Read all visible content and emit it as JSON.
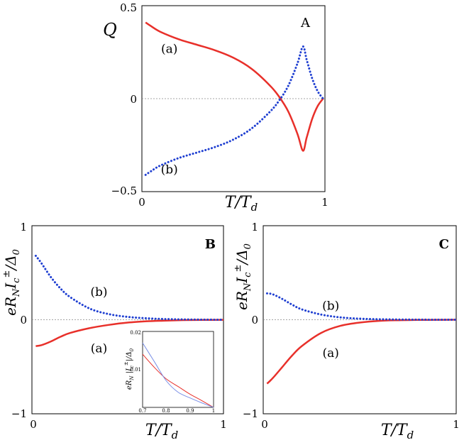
{
  "colors": {
    "curve_a": "#e8302a",
    "curve_b": "#1f3fd1",
    "axis": "#000000",
    "zero_line": "#888888"
  },
  "chart_data": [
    {
      "panel": "A",
      "type": "line",
      "ylabel": "Q",
      "xlabel": "T/T",
      "xlabel_sub": "d",
      "xlim": [
        0,
        1
      ],
      "ylim": [
        -0.5,
        0.5
      ],
      "x_ticks": [
        "0",
        "1"
      ],
      "y_ticks": [
        "−0.5",
        "0",
        "0.5"
      ],
      "series": [
        {
          "name": "(a)",
          "style": "solid",
          "x": [
            0.02,
            0.05,
            0.1,
            0.2,
            0.3,
            0.4,
            0.5,
            0.6,
            0.7,
            0.75,
            0.8,
            0.85,
            0.88,
            0.9,
            0.93,
            0.96,
            0.99
          ],
          "y": [
            0.41,
            0.39,
            0.36,
            0.32,
            0.29,
            0.26,
            0.22,
            0.16,
            0.07,
            0.01,
            -0.07,
            -0.19,
            -0.28,
            -0.21,
            -0.11,
            -0.04,
            0.0
          ]
        },
        {
          "name": "(b)",
          "style": "dotted",
          "x": [
            0.02,
            0.05,
            0.1,
            0.2,
            0.3,
            0.4,
            0.5,
            0.6,
            0.7,
            0.75,
            0.8,
            0.85,
            0.88,
            0.9,
            0.93,
            0.96,
            0.99
          ],
          "y": [
            -0.41,
            -0.39,
            -0.36,
            -0.32,
            -0.29,
            -0.26,
            -0.22,
            -0.16,
            -0.07,
            -0.01,
            0.07,
            0.19,
            0.28,
            0.21,
            0.11,
            0.04,
            0.0
          ]
        }
      ],
      "labels": [
        {
          "text": "(a)",
          "x": 0.15,
          "y": 0.27
        },
        {
          "text": "(b)",
          "x": 0.15,
          "y": -0.38
        }
      ]
    },
    {
      "panel": "B",
      "type": "line",
      "ylabel": "eR",
      "xlabel": "T/T",
      "xlabel_sub": "d",
      "xlim": [
        0,
        1
      ],
      "ylim": [
        -1,
        1
      ],
      "x_ticks": [
        "0",
        "1"
      ],
      "y_ticks": [
        "−1",
        "0",
        "1"
      ],
      "series": [
        {
          "name": "(a)",
          "style": "solid",
          "x": [
            0.02,
            0.05,
            0.1,
            0.15,
            0.2,
            0.3,
            0.4,
            0.5,
            0.6,
            0.7,
            0.8,
            0.9,
            1.0
          ],
          "y": [
            -0.28,
            -0.27,
            -0.23,
            -0.18,
            -0.14,
            -0.09,
            -0.055,
            -0.03,
            -0.016,
            -0.009,
            -0.004,
            -0.002,
            -0.001
          ]
        },
        {
          "name": "(b)",
          "style": "dotted",
          "x": [
            0.02,
            0.05,
            0.1,
            0.15,
            0.2,
            0.3,
            0.4,
            0.5,
            0.6,
            0.7,
            0.8,
            0.9,
            1.0
          ],
          "y": [
            0.68,
            0.6,
            0.45,
            0.33,
            0.24,
            0.12,
            0.06,
            0.03,
            0.015,
            0.007,
            0.003,
            0.001,
            0.0
          ]
        }
      ],
      "labels": [
        {
          "text": "(b)",
          "x": 0.35,
          "y": 0.3
        },
        {
          "text": "(a)",
          "x": 0.35,
          "y": -0.3
        }
      ],
      "inset": {
        "xlim": [
          0.7,
          1
        ],
        "ylim": [
          0,
          0.02
        ],
        "x_ticks": [
          "0.7",
          "0.8",
          "0.9",
          "1"
        ],
        "y_ticks": [
          "0",
          "0.01",
          "0.02"
        ],
        "series": [
          {
            "name": "red",
            "x": [
              0.7,
              0.75,
              0.8,
              0.85,
              0.9,
              0.95,
              1.0
            ],
            "y": [
              0.014,
              0.0105,
              0.0075,
              0.0055,
              0.0035,
              0.0018,
              0.0
            ]
          },
          {
            "name": "blue",
            "x": [
              0.7,
              0.75,
              0.8,
              0.85,
              0.9,
              0.95,
              1.0
            ],
            "y": [
              0.017,
              0.012,
              0.007,
              0.004,
              0.0025,
              0.0012,
              0.0
            ]
          }
        ]
      }
    },
    {
      "panel": "C",
      "type": "line",
      "ylabel": "eR",
      "xlabel": "T/T",
      "xlabel_sub": "d",
      "xlim": [
        0,
        1
      ],
      "ylim": [
        -1,
        1
      ],
      "x_ticks": [
        "0",
        "1"
      ],
      "y_ticks": [
        "−1",
        "0",
        "1"
      ],
      "series": [
        {
          "name": "(a)",
          "style": "solid",
          "x": [
            0.02,
            0.05,
            0.1,
            0.15,
            0.2,
            0.3,
            0.4,
            0.5,
            0.6,
            0.7,
            0.8,
            0.9,
            1.0
          ],
          "y": [
            -0.68,
            -0.62,
            -0.5,
            -0.38,
            -0.28,
            -0.14,
            -0.065,
            -0.03,
            -0.012,
            -0.005,
            -0.002,
            -0.001,
            0.0
          ]
        },
        {
          "name": "(b)",
          "style": "dotted",
          "x": [
            0.02,
            0.05,
            0.1,
            0.15,
            0.2,
            0.3,
            0.4,
            0.5,
            0.6,
            0.7,
            0.8,
            0.9,
            1.0
          ],
          "y": [
            0.28,
            0.27,
            0.22,
            0.16,
            0.11,
            0.055,
            0.025,
            0.011,
            0.005,
            0.002,
            0.001,
            0.0,
            0.0
          ]
        }
      ],
      "labels": [
        {
          "text": "(b)",
          "x": 0.35,
          "y": 0.15
        },
        {
          "text": "(a)",
          "x": 0.35,
          "y": -0.35
        }
      ]
    }
  ]
}
